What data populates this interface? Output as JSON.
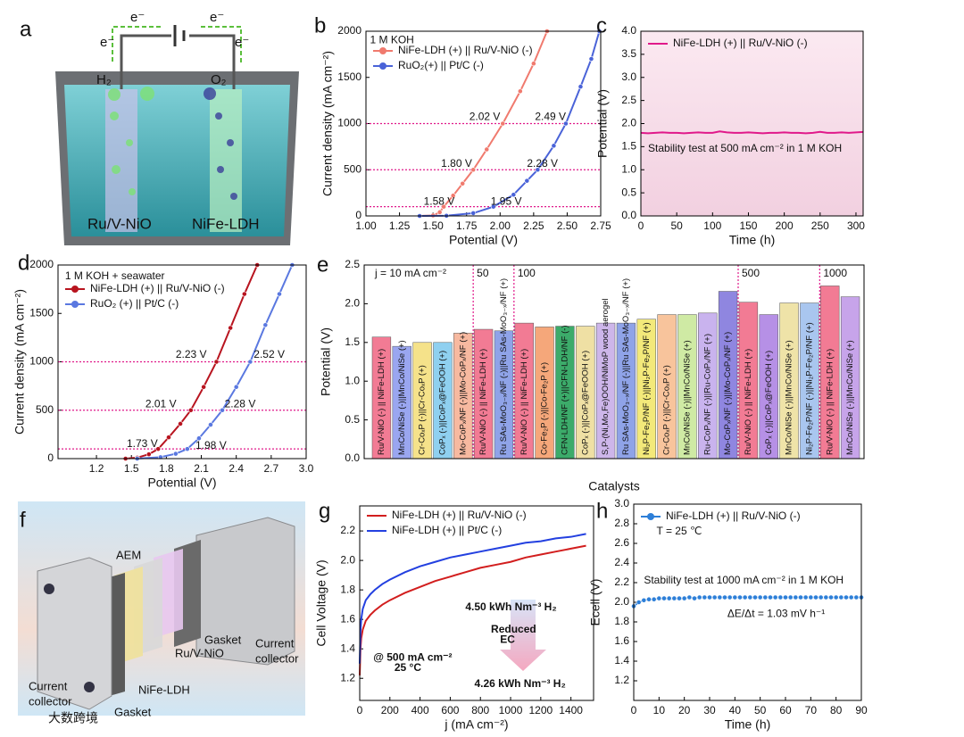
{
  "figure_a": {
    "panel": "a",
    "left_electrode": "Ru/V-NiO",
    "right_electrode": "NiFe-LDH",
    "left_gas": "H₂",
    "right_gas": "O₂",
    "electron": "e⁻"
  },
  "figure_f": {
    "panel": "f",
    "membrane": "AEM",
    "cathode": "Ru/V-NiO",
    "anode": "NiFe-LDH",
    "gasket": "Gasket",
    "collector": [
      "Current",
      "collector"
    ]
  },
  "watermark": "大数跨境",
  "chart_data": [
    {
      "panel": "b",
      "type": "line",
      "markers": true,
      "legend": "upper left",
      "xlabel": "Potential (V)",
      "ylabel": "Current density (mA cm⁻²)",
      "xlim": [
        1.0,
        2.75
      ],
      "xticks": [
        {
          "value": 1.0,
          "label": "1.00"
        },
        1.25,
        {
          "value": 1.5,
          "label": "1.50"
        },
        1.75,
        {
          "value": 2.0,
          "label": "2.00"
        },
        2.25,
        {
          "value": 2.5,
          "label": "2.50"
        },
        2.75
      ],
      "ylim": [
        0,
        2000
      ],
      "yticks": [
        0,
        500,
        1000,
        1500,
        2000
      ],
      "hlines": [
        100,
        500,
        1000
      ],
      "hline_color": "#e0198a",
      "series": [
        {
          "name": "NiFe-LDH (+) || Ru/V-NiO (-)",
          "color": "#f07a6e",
          "x": [
            1.4,
            1.5,
            1.55,
            1.58,
            1.65,
            1.72,
            1.8,
            1.9,
            2.02,
            2.15,
            2.25,
            2.35
          ],
          "values": [
            0,
            5,
            40,
            100,
            220,
            350,
            500,
            720,
            1000,
            1350,
            1650,
            2000
          ]
        },
        {
          "name": "RuO₂(+) || Pt/C (-)",
          "color": "#4a63d8",
          "x": [
            1.4,
            1.6,
            1.8,
            1.95,
            2.1,
            2.2,
            2.28,
            2.4,
            2.49,
            2.6,
            2.68,
            2.74
          ],
          "values": [
            0,
            2,
            30,
            100,
            230,
            380,
            500,
            760,
            1000,
            1400,
            1700,
            2000
          ]
        }
      ],
      "annotations": [
        {
          "text": "1 M KOH",
          "x": 1.03,
          "y": 1900,
          "color": "#000000"
        },
        {
          "text": "1.58 V",
          "x": 1.43,
          "y": 150,
          "color": "#c0182a"
        },
        {
          "text": "1.80 V",
          "x": 1.56,
          "y": 560,
          "color": "#c0182a"
        },
        {
          "text": "2.02 V",
          "x": 1.77,
          "y": 1070,
          "color": "#c0182a"
        },
        {
          "text": "1.95 V",
          "x": 1.93,
          "y": 150,
          "color": "#2f4fd0"
        },
        {
          "text": "2.28 V",
          "x": 2.2,
          "y": 560,
          "color": "#2f4fd0"
        },
        {
          "text": "2.49 V",
          "x": 2.26,
          "y": 1070,
          "color": "#2f4fd0"
        }
      ]
    },
    {
      "panel": "c",
      "type": "line",
      "markers": false,
      "legend": "upper left",
      "xlabel": "Time (h)",
      "ylabel": "Potential (V)",
      "xlim": [
        0,
        310
      ],
      "xticks": [
        0,
        50,
        100,
        150,
        200,
        250,
        300
      ],
      "ylim": [
        0,
        4
      ],
      "yticks": [
        {
          "value": 0,
          "label": "0.0"
        },
        0.5,
        {
          "value": 1,
          "label": "1.0"
        },
        1.5,
        {
          "value": 2,
          "label": "2.0"
        },
        2.5,
        {
          "value": 3,
          "label": "3.0"
        },
        3.5,
        {
          "value": 4,
          "label": "4.0"
        }
      ],
      "series": [
        {
          "name": "NiFe-LDH (+) || Ru/V-NiO (-)",
          "color": "#e0198a",
          "x": [
            0,
            10,
            20,
            30,
            40,
            50,
            60,
            70,
            80,
            90,
            100,
            110,
            120,
            130,
            140,
            150,
            160,
            170,
            180,
            190,
            200,
            210,
            220,
            230,
            240,
            250,
            260,
            270,
            280,
            290,
            300,
            310
          ],
          "values": [
            1.8,
            1.79,
            1.8,
            1.81,
            1.8,
            1.8,
            1.79,
            1.8,
            1.81,
            1.8,
            1.8,
            1.83,
            1.81,
            1.8,
            1.8,
            1.81,
            1.8,
            1.79,
            1.8,
            1.8,
            1.81,
            1.8,
            1.8,
            1.79,
            1.8,
            1.82,
            1.8,
            1.8,
            1.81,
            1.8,
            1.81,
            1.82
          ]
        }
      ],
      "annotations": [
        {
          "text": "Stability test at 500 mA cm⁻² in 1 M KOH",
          "x": 10,
          "y": 1.45,
          "color": "#000000"
        }
      ]
    },
    {
      "panel": "d",
      "type": "line",
      "markers": true,
      "legend": "upper left",
      "xlabel": "Potential (V)",
      "ylabel": "Current density (mA cm⁻²)",
      "xlim": [
        0.87,
        3.0
      ],
      "xticks": [
        1.2,
        1.5,
        1.8,
        2.1,
        2.4,
        2.7,
        {
          "value": 3.0,
          "label": "3.0"
        }
      ],
      "ylim": [
        0,
        2000
      ],
      "yticks": [
        0,
        500,
        1000,
        1500,
        2000
      ],
      "hlines": [
        100,
        500,
        1000
      ],
      "hline_color": "#e0198a",
      "series": [
        {
          "name": "NiFe-LDH (+) || Ru/V-NiO (-)",
          "color": "#b8141f",
          "x": [
            1.45,
            1.55,
            1.65,
            1.73,
            1.82,
            1.92,
            2.01,
            2.12,
            2.23,
            2.35,
            2.47,
            2.58
          ],
          "values": [
            0,
            10,
            45,
            100,
            220,
            360,
            500,
            740,
            1000,
            1350,
            1700,
            2000
          ]
        },
        {
          "name": "RuO₂ (+) || Pt/C (-)",
          "color": "#5a78e0",
          "x": [
            1.55,
            1.75,
            1.88,
            1.98,
            2.08,
            2.18,
            2.28,
            2.4,
            2.52,
            2.65,
            2.77,
            2.88
          ],
          "values": [
            0,
            15,
            50,
            100,
            210,
            350,
            500,
            740,
            1000,
            1380,
            1700,
            2000
          ]
        }
      ],
      "annotations": [
        {
          "text": "1 M KOH + seawater",
          "x": 0.93,
          "y": 1880,
          "color": "#000000"
        },
        {
          "text": "1.73 V",
          "x": 1.46,
          "y": 150,
          "color": "#b8141f"
        },
        {
          "text": "2.01 V",
          "x": 1.62,
          "y": 560,
          "color": "#b8141f"
        },
        {
          "text": "2.23 V",
          "x": 1.88,
          "y": 1070,
          "color": "#b8141f"
        },
        {
          "text": "1.98 V",
          "x": 2.05,
          "y": 130,
          "color": "#2f4fd0"
        },
        {
          "text": "2.28 V",
          "x": 2.3,
          "y": 560,
          "color": "#2f4fd0"
        },
        {
          "text": "2.52 V",
          "x": 2.55,
          "y": 1070,
          "color": "#2f4fd0"
        }
      ]
    },
    {
      "panel": "e",
      "type": "bar",
      "xlabel": "Catalysts",
      "ylabel": "Potential (V)",
      "ylim": [
        0,
        2.5
      ],
      "yticks": [
        {
          "value": 0,
          "label": "0.0"
        },
        0.5,
        {
          "value": 1,
          "label": "1.0"
        },
        1.5,
        {
          "value": 2,
          "label": "2.0"
        },
        2.5
      ],
      "group_labels": [
        "j = 10 mA cm⁻²",
        "50",
        "100",
        "500",
        "1000"
      ],
      "group_starts": [
        0,
        5,
        7,
        18,
        22
      ],
      "group_color": "#e0198a",
      "categories": [
        "Ru/V-NiO (-) || NiFe-LDH (+)",
        "MnCo/NiSe (-)||MnCo/NiSe (+)",
        "Cr-CoₓP (-)||Cr-CoₓP (+)",
        "CoPₓ (-)||CoPₓ@FeOOH (+)",
        "Mo-CoPₓ/NF (-)||Mo-CoPₓ/NF (+)",
        "Ru/V-NiO (-) || NiFe-LDH (+)",
        "Ru SAs-MoO₃₋ₓ/NF (-)||Ru SAs-MoO₃₋ₓ/NF (+)",
        "Ru/V-NiO (-) || NiFe-LDH (+)",
        "Co-Fe₂P (-)||Co-Fe₂P (+)",
        "CFN-LDH/NF (+)||CFN-LDH/NF (-)",
        "CoPₓ (-)||CoPₓ@FeOOH (+)",
        "S,P-(Ni,Mo,Fe)OOH/NiMoP wood aerogel",
        "Ru SAs-MoO₃₋ₓ/NF (-)||Ru SAs-MoO₃₋ₓ/NF (+)",
        "Ni₂P-Fe₂P/NF (-)||Ni₂P-Fe₂P/NF (+)",
        "Cr-CoₓP (-)||Cr-CoₓP (+)",
        "MnCo/NiSe (-)||MnCo/NiSe (+)",
        "Ru-CoPₓ/NF (-)||Ru-CoPₓ/NF (+)",
        "Mo-CoPₓ/NF (-)||Mo-CoPₓ/NF (+)",
        "Ru/V-NiO (-) || NiFe-LDH (+)",
        "CoPₓ (-)||CoPₓ@FeOOH (+)",
        "MnCo/NiSe (-)||MnCo/NiSe (+)",
        "Ni₂P-Fe₂P/NF (-)||Ni₂P-Fe₂P/NF (+)",
        "Ru/V-NiO (-) || NiFe-LDH (+)",
        "MnCo/NiSe (-)||MnCo/NiSe (+)"
      ],
      "values": [
        1.57,
        1.45,
        1.5,
        1.5,
        1.62,
        1.67,
        1.65,
        1.75,
        1.7,
        1.71,
        1.71,
        1.75,
        1.75,
        1.8,
        1.86,
        1.86,
        1.88,
        2.16,
        2.02,
        1.86,
        2.01,
        2.01,
        2.23,
        2.09
      ],
      "colors": [
        "#f27b94",
        "#9aa6f0",
        "#f5e28a",
        "#8fd0f0",
        "#f7b9a0",
        "#f27b94",
        "#8fa3e8",
        "#f27b94",
        "#f5a77a",
        "#3cab6a",
        "#efe0a4",
        "#cdb6ea",
        "#8fa3e8",
        "#f3e97a",
        "#f8c49c",
        "#cfeaa4",
        "#c9b3ee",
        "#8f86e0",
        "#f27b94",
        "#b690e6",
        "#efe3a8",
        "#a9c6ef",
        "#f27b94",
        "#c7a4ea"
      ]
    },
    {
      "panel": "g",
      "type": "line",
      "markers": false,
      "legend": "upper left",
      "xlabel": "j (mA cm⁻²)",
      "ylabel": "Cell Voltage (V)",
      "xlim": [
        0,
        1550
      ],
      "xticks": [
        0,
        200,
        400,
        600,
        800,
        1000,
        1200,
        1400
      ],
      "ylim": [
        1.05,
        2.37
      ],
      "yticks": [
        1.2,
        1.4,
        1.6,
        1.8,
        {
          "value": 2.0,
          "label": "2.0"
        },
        2.2
      ],
      "series": [
        {
          "name": "NiFe-LDH (+) || Ru/V-NiO (-)",
          "color": "#d21e1e",
          "x": [
            0,
            5,
            10,
            20,
            40,
            70,
            100,
            150,
            200,
            300,
            400,
            500,
            600,
            700,
            800,
            900,
            1000,
            1100,
            1200,
            1300,
            1400,
            1500
          ],
          "values": [
            1.22,
            1.4,
            1.47,
            1.53,
            1.59,
            1.63,
            1.66,
            1.7,
            1.73,
            1.78,
            1.82,
            1.86,
            1.89,
            1.92,
            1.95,
            1.97,
            1.99,
            2.02,
            2.04,
            2.06,
            2.08,
            2.1
          ]
        },
        {
          "name": "NiFe-LDH (+) || Pt/C (-)",
          "color": "#2340e0",
          "x": [
            0,
            5,
            10,
            20,
            40,
            70,
            100,
            150,
            200,
            300,
            400,
            500,
            600,
            700,
            800,
            900,
            1000,
            1100,
            1200,
            1300,
            1400,
            1500
          ],
          "values": [
            1.3,
            1.52,
            1.6,
            1.67,
            1.73,
            1.77,
            1.8,
            1.84,
            1.87,
            1.92,
            1.96,
            1.99,
            2.02,
            2.04,
            2.06,
            2.08,
            2.1,
            2.12,
            2.13,
            2.15,
            2.16,
            2.18
          ]
        }
      ],
      "annotations": [
        {
          "text": "4.50 kWh Nm⁻³  H₂",
          "x": 700,
          "y": 1.68,
          "color": "#1f6fc0",
          "bold": true
        },
        {
          "text": "Reduced",
          "x": 870,
          "y": 1.53,
          "color": "#e02020",
          "bold": true
        },
        {
          "text": "EC",
          "x": 930,
          "y": 1.46,
          "color": "#e02020",
          "bold": true
        },
        {
          "text": "@ 500 mA cm⁻²",
          "x": 90,
          "y": 1.34,
          "color": "#000000",
          "bold": true
        },
        {
          "text": "25 °C",
          "x": 230,
          "y": 1.27,
          "color": "#000000",
          "bold": true
        },
        {
          "text": "4.26 kWh Nm⁻³  H₂",
          "x": 760,
          "y": 1.16,
          "color": "#f08aa8",
          "bold": true
        }
      ]
    },
    {
      "panel": "h",
      "type": "line",
      "markers": true,
      "legend": "upper left",
      "xlabel": "Time (h)",
      "ylabel": "Ecell (V)",
      "xlim": [
        0,
        90
      ],
      "xticks": [
        0,
        10,
        20,
        30,
        40,
        50,
        60,
        70,
        80,
        90
      ],
      "ylim": [
        1.0,
        3.0
      ],
      "yticks": [
        1.2,
        1.4,
        1.6,
        1.8,
        {
          "value": 2.0,
          "label": "2.0"
        },
        2.2,
        2.4,
        2.6,
        2.8,
        {
          "value": 3.0,
          "label": "3.0"
        }
      ],
      "series": [
        {
          "name": "NiFe-LDH (+) || Ru/V-NiO (-)",
          "color": "#2d7fd8",
          "x": [
            0,
            2,
            4,
            6,
            8,
            10,
            12,
            14,
            16,
            18,
            20,
            22,
            24,
            26,
            28,
            30,
            32,
            34,
            36,
            38,
            40,
            42,
            44,
            46,
            48,
            50,
            52,
            54,
            56,
            58,
            60,
            62,
            64,
            66,
            68,
            70,
            72,
            74,
            76,
            78,
            80,
            82,
            84,
            86,
            88,
            90
          ],
          "values": [
            1.96,
            2.0,
            2.02,
            2.03,
            2.03,
            2.04,
            2.04,
            2.04,
            2.04,
            2.04,
            2.04,
            2.05,
            2.04,
            2.05,
            2.05,
            2.05,
            2.05,
            2.05,
            2.05,
            2.05,
            2.05,
            2.05,
            2.05,
            2.05,
            2.05,
            2.05,
            2.05,
            2.05,
            2.05,
            2.05,
            2.05,
            2.05,
            2.05,
            2.05,
            2.05,
            2.05,
            2.05,
            2.05,
            2.05,
            2.05,
            2.05,
            2.05,
            2.05,
            2.05,
            2.05,
            2.05
          ]
        }
      ],
      "annotations": [
        {
          "text": "T = 25 ℃",
          "x": 9,
          "y": 2.72,
          "color": "#1f4fbf"
        },
        {
          "text": "Stability test at 1000 mA cm⁻² in 1 M KOH",
          "x": 4,
          "y": 2.22,
          "color": "#000000"
        },
        {
          "text": "ΔE/Δt = 1.03 mV h⁻¹",
          "x": 37,
          "y": 1.88,
          "color": "#2d6fd0"
        }
      ]
    }
  ]
}
